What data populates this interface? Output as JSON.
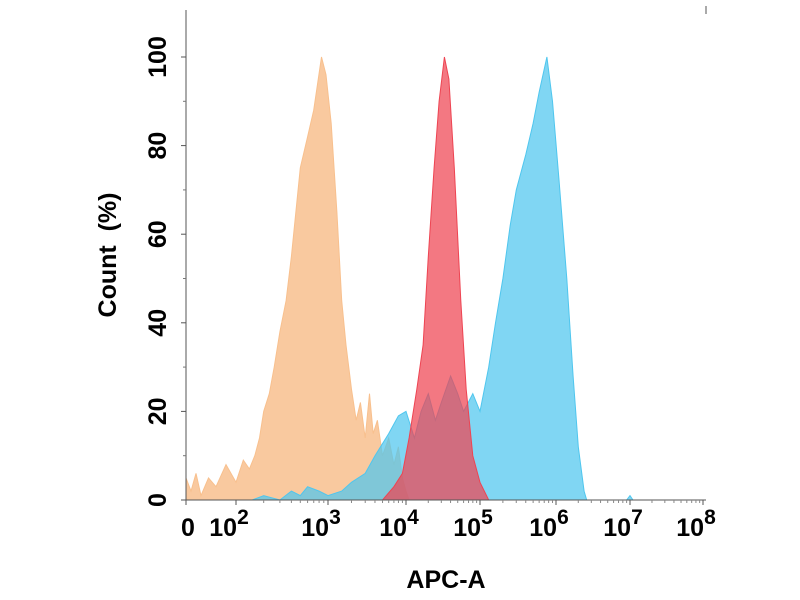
{
  "chart_data": {
    "type": "area",
    "title": "",
    "xlabel": "APC-A",
    "ylabel": "Count  (%)",
    "x_scale": "biexponential",
    "xlim": [
      0,
      100000000
    ],
    "ylim": [
      0,
      108
    ],
    "grid": false,
    "legend": "none",
    "xticks": [
      {
        "value": 0,
        "base": "0",
        "exp": ""
      },
      {
        "value": 100,
        "base": "10",
        "exp": "2"
      },
      {
        "value": 1000,
        "base": "10",
        "exp": "3"
      },
      {
        "value": 10000,
        "base": "10",
        "exp": "4"
      },
      {
        "value": 100000,
        "base": "10",
        "exp": "5"
      },
      {
        "value": 1000000,
        "base": "10",
        "exp": "6"
      },
      {
        "value": 10000000,
        "base": "10",
        "exp": "7"
      },
      {
        "value": 100000000,
        "base": "10",
        "exp": "8"
      }
    ],
    "yticks": [
      "0",
      "20",
      "40",
      "60",
      "80",
      "100"
    ],
    "series": [
      {
        "color": "#f8c08e",
        "points": [
          [
            0,
            5
          ],
          [
            10,
            2
          ],
          [
            20,
            6
          ],
          [
            30,
            1
          ],
          [
            45,
            5
          ],
          [
            60,
            3
          ],
          [
            80,
            8
          ],
          [
            100,
            4
          ],
          [
            120,
            9
          ],
          [
            140,
            7
          ],
          [
            160,
            10
          ],
          [
            180,
            14
          ],
          [
            200,
            20
          ],
          [
            230,
            24
          ],
          [
            260,
            30
          ],
          [
            300,
            38
          ],
          [
            350,
            45
          ],
          [
            400,
            55
          ],
          [
            500,
            75
          ],
          [
            600,
            82
          ],
          [
            700,
            88
          ],
          [
            850,
            100
          ],
          [
            950,
            96
          ],
          [
            1100,
            85
          ],
          [
            1300,
            65
          ],
          [
            1500,
            45
          ],
          [
            1700,
            35
          ],
          [
            2000,
            25
          ],
          [
            2300,
            18
          ],
          [
            2600,
            22
          ],
          [
            3000,
            14
          ],
          [
            3400,
            24
          ],
          [
            3800,
            15
          ],
          [
            4300,
            18
          ],
          [
            5000,
            10
          ],
          [
            6000,
            14
          ],
          [
            7000,
            8
          ],
          [
            8000,
            12
          ],
          [
            9000,
            5
          ],
          [
            10000,
            2
          ],
          [
            11000,
            0
          ]
        ]
      },
      {
        "color": "#4fc6ee",
        "points": [
          [
            150,
            0
          ],
          [
            200,
            1
          ],
          [
            300,
            0
          ],
          [
            400,
            2
          ],
          [
            500,
            1
          ],
          [
            600,
            3
          ],
          [
            800,
            2
          ],
          [
            1000,
            1
          ],
          [
            1500,
            2
          ],
          [
            2000,
            4
          ],
          [
            3000,
            6
          ],
          [
            4000,
            10
          ],
          [
            6000,
            15
          ],
          [
            8000,
            19
          ],
          [
            10000,
            20
          ],
          [
            13000,
            14
          ],
          [
            16000,
            20
          ],
          [
            20000,
            24
          ],
          [
            25000,
            18
          ],
          [
            30000,
            22
          ],
          [
            40000,
            28
          ],
          [
            50000,
            24
          ],
          [
            60000,
            20
          ],
          [
            80000,
            24
          ],
          [
            100000,
            20
          ],
          [
            130000,
            30
          ],
          [
            160000,
            40
          ],
          [
            200000,
            50
          ],
          [
            250000,
            62
          ],
          [
            300000,
            70
          ],
          [
            400000,
            78
          ],
          [
            500000,
            85
          ],
          [
            600000,
            92
          ],
          [
            760000,
            100
          ],
          [
            900000,
            90
          ],
          [
            1100000,
            72
          ],
          [
            1400000,
            50
          ],
          [
            1700000,
            28
          ],
          [
            2000000,
            12
          ],
          [
            2400000,
            2
          ],
          [
            2600000,
            0
          ],
          [
            9000000,
            0
          ],
          [
            10000000,
            1
          ],
          [
            11000000,
            0
          ]
        ]
      },
      {
        "color": "#ee4452",
        "points": [
          [
            5000,
            0
          ],
          [
            7000,
            3
          ],
          [
            9000,
            6
          ],
          [
            11000,
            14
          ],
          [
            14000,
            25
          ],
          [
            17000,
            35
          ],
          [
            20000,
            55
          ],
          [
            24000,
            75
          ],
          [
            28000,
            90
          ],
          [
            33000,
            100
          ],
          [
            38000,
            95
          ],
          [
            45000,
            75
          ],
          [
            55000,
            45
          ],
          [
            65000,
            25
          ],
          [
            80000,
            10
          ],
          [
            100000,
            4
          ],
          [
            130000,
            0
          ]
        ]
      }
    ]
  }
}
